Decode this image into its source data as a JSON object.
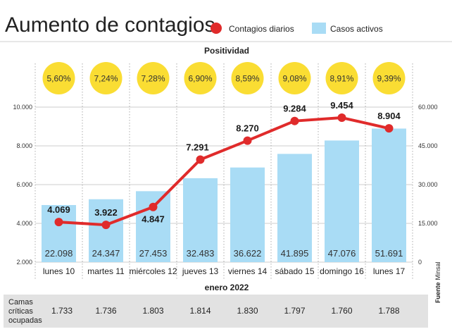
{
  "title": "Aumento de contagios",
  "legend": {
    "daily": "Contagios diarios",
    "active": "Casos activos"
  },
  "positivity_label": "Positividad",
  "positivity": [
    "5,60%",
    "7,24%",
    "7,28%",
    "6,90%",
    "8,59%",
    "9,08%",
    "8,91%",
    "9,39%"
  ],
  "colors": {
    "bar": "#a9dcf5",
    "line": "#e02b2b",
    "circle": "#fadd33",
    "camas_bg": "#e2e2e2",
    "grid": "#bbbbbb"
  },
  "camas": {
    "label_lines": [
      "Camas",
      "críticas",
      "ocupadas"
    ],
    "values": [
      "1.733",
      "1.736",
      "1.803",
      "1.814",
      "1.830",
      "1.797",
      "1.760",
      "1.788"
    ]
  },
  "source": {
    "bold": "Fuente",
    "text": "Minsal"
  },
  "chart_data": {
    "type": "bar+line",
    "xlabel": "enero 2022",
    "categories": [
      "lunes 10",
      "martes 11",
      "miércoles 12",
      "jueves 13",
      "viernes 14",
      "sábado 15",
      "domingo 16",
      "lunes 17"
    ],
    "series": [
      {
        "name": "Contagios diarios",
        "type": "line",
        "axis": "left",
        "values": [
          4069,
          3922,
          4847,
          7291,
          8270,
          9284,
          9454,
          8904
        ],
        "labels": [
          "4.069",
          "3.922",
          "4.847",
          "7.291",
          "8.270",
          "9.284",
          "9.454",
          "8.904"
        ]
      },
      {
        "name": "Casos activos",
        "type": "bar",
        "axis": "right",
        "values": [
          22098,
          24347,
          27453,
          32483,
          36622,
          41895,
          47076,
          51691
        ],
        "labels": [
          "22.098",
          "24.347",
          "27.453",
          "32.483",
          "36.622",
          "41.895",
          "47.076",
          "51.691"
        ]
      }
    ],
    "y_left": {
      "range": [
        2000,
        10000
      ],
      "ticks": [
        "2.000",
        "4.000",
        "6.000",
        "8.000",
        "10.000"
      ]
    },
    "y_right": {
      "range": [
        0,
        60000
      ],
      "ticks": [
        "0",
        "15.000",
        "30.000",
        "45.000",
        "60.000"
      ]
    }
  }
}
